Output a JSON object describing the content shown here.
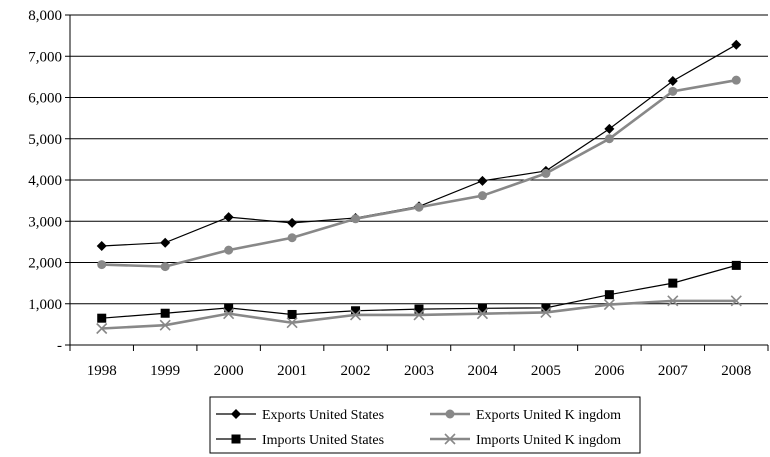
{
  "chart_data": {
    "type": "line",
    "title": "",
    "xlabel": "",
    "ylabel": "",
    "ylim": [
      0,
      8000
    ],
    "yticks": [
      0,
      1000,
      2000,
      3000,
      4000,
      5000,
      6000,
      7000,
      8000
    ],
    "ytick_labels": [
      "-",
      "1,000",
      "2,000",
      "3,000",
      "4,000",
      "5,000",
      "6,000",
      "7,000",
      "8,000"
    ],
    "grid": "horizontal",
    "legend_position": "bottom",
    "categories": [
      "1998",
      "1999",
      "2000",
      "2001",
      "2002",
      "2003",
      "2004",
      "2005",
      "2006",
      "2007",
      "2008"
    ],
    "series": [
      {
        "name": "Exports United States",
        "color": "#000000",
        "marker": "diamond",
        "values": [
          2400,
          2480,
          3100,
          2960,
          3080,
          3360,
          3980,
          4220,
          5240,
          6400,
          7280
        ]
      },
      {
        "name": "Exports United K ingdom",
        "color": "#888888",
        "marker": "circle",
        "values": [
          1950,
          1900,
          2300,
          2600,
          3060,
          3340,
          3620,
          4160,
          5000,
          6150,
          6420
        ]
      },
      {
        "name": "Imports United States",
        "color": "#000000",
        "marker": "square",
        "values": [
          650,
          770,
          900,
          740,
          830,
          870,
          890,
          900,
          1220,
          1500,
          1930
        ]
      },
      {
        "name": "Imports United K ingdom",
        "color": "#888888",
        "marker": "x",
        "values": [
          400,
          480,
          760,
          540,
          730,
          730,
          760,
          790,
          980,
          1070,
          1070
        ]
      }
    ]
  }
}
